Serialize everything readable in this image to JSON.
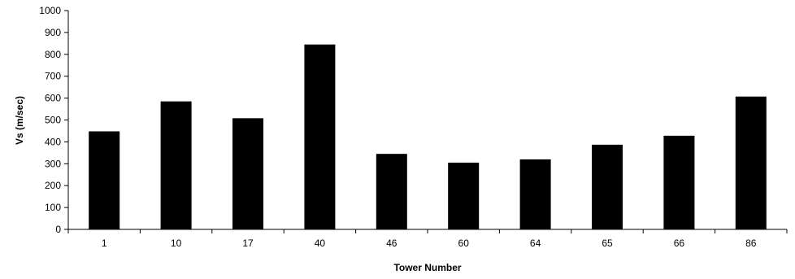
{
  "chart_data": {
    "type": "bar",
    "title": "",
    "xlabel": "Tower Number",
    "ylabel": "Vs (m/sec)",
    "categories": [
      "1",
      "10",
      "17",
      "40",
      "46",
      "60",
      "64",
      "65",
      "66",
      "86"
    ],
    "values": [
      448,
      585,
      508,
      845,
      345,
      305,
      320,
      387,
      428,
      607
    ],
    "ylim": [
      0,
      1000
    ],
    "yticks": [
      "0",
      "100",
      "200",
      "300",
      "400",
      "500",
      "600",
      "700",
      "800",
      "900",
      "1000"
    ],
    "grid": false,
    "legend": "none",
    "colors": {
      "bar": "#000000",
      "axis": "#000000"
    }
  }
}
